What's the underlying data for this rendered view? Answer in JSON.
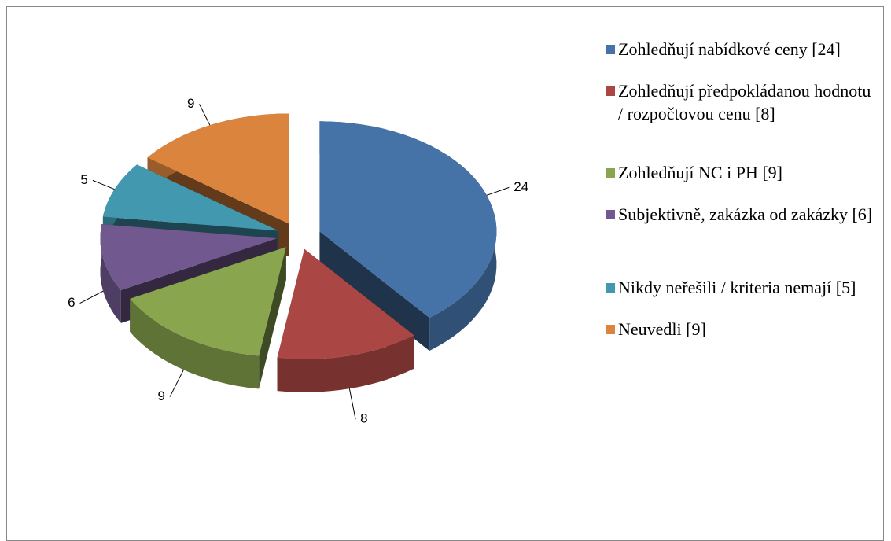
{
  "chart_data": {
    "type": "pie",
    "series": [
      {
        "name": "Zohledňují nabídkové ceny [24]",
        "color": "#4572a7",
        "values": [
          24
        ]
      },
      {
        "name": "Zohledňují předpokládanou hodnotu / rozpočtovou cenu [8]",
        "color": "#aa4643",
        "values": [
          8
        ]
      },
      {
        "name": "Zohledňují NC i PH [9]",
        "color": "#89a54e",
        "values": [
          9
        ]
      },
      {
        "name": "Subjektivně, zakázka od zakázky [6]",
        "color": "#71588f",
        "values": [
          6
        ]
      },
      {
        "name": "Nikdy neřešili / kriteria nemají [5]",
        "color": "#4198af",
        "values": [
          5
        ]
      },
      {
        "name": "Neuvedli [9]",
        "color": "#db843d",
        "values": [
          9
        ]
      }
    ]
  }
}
